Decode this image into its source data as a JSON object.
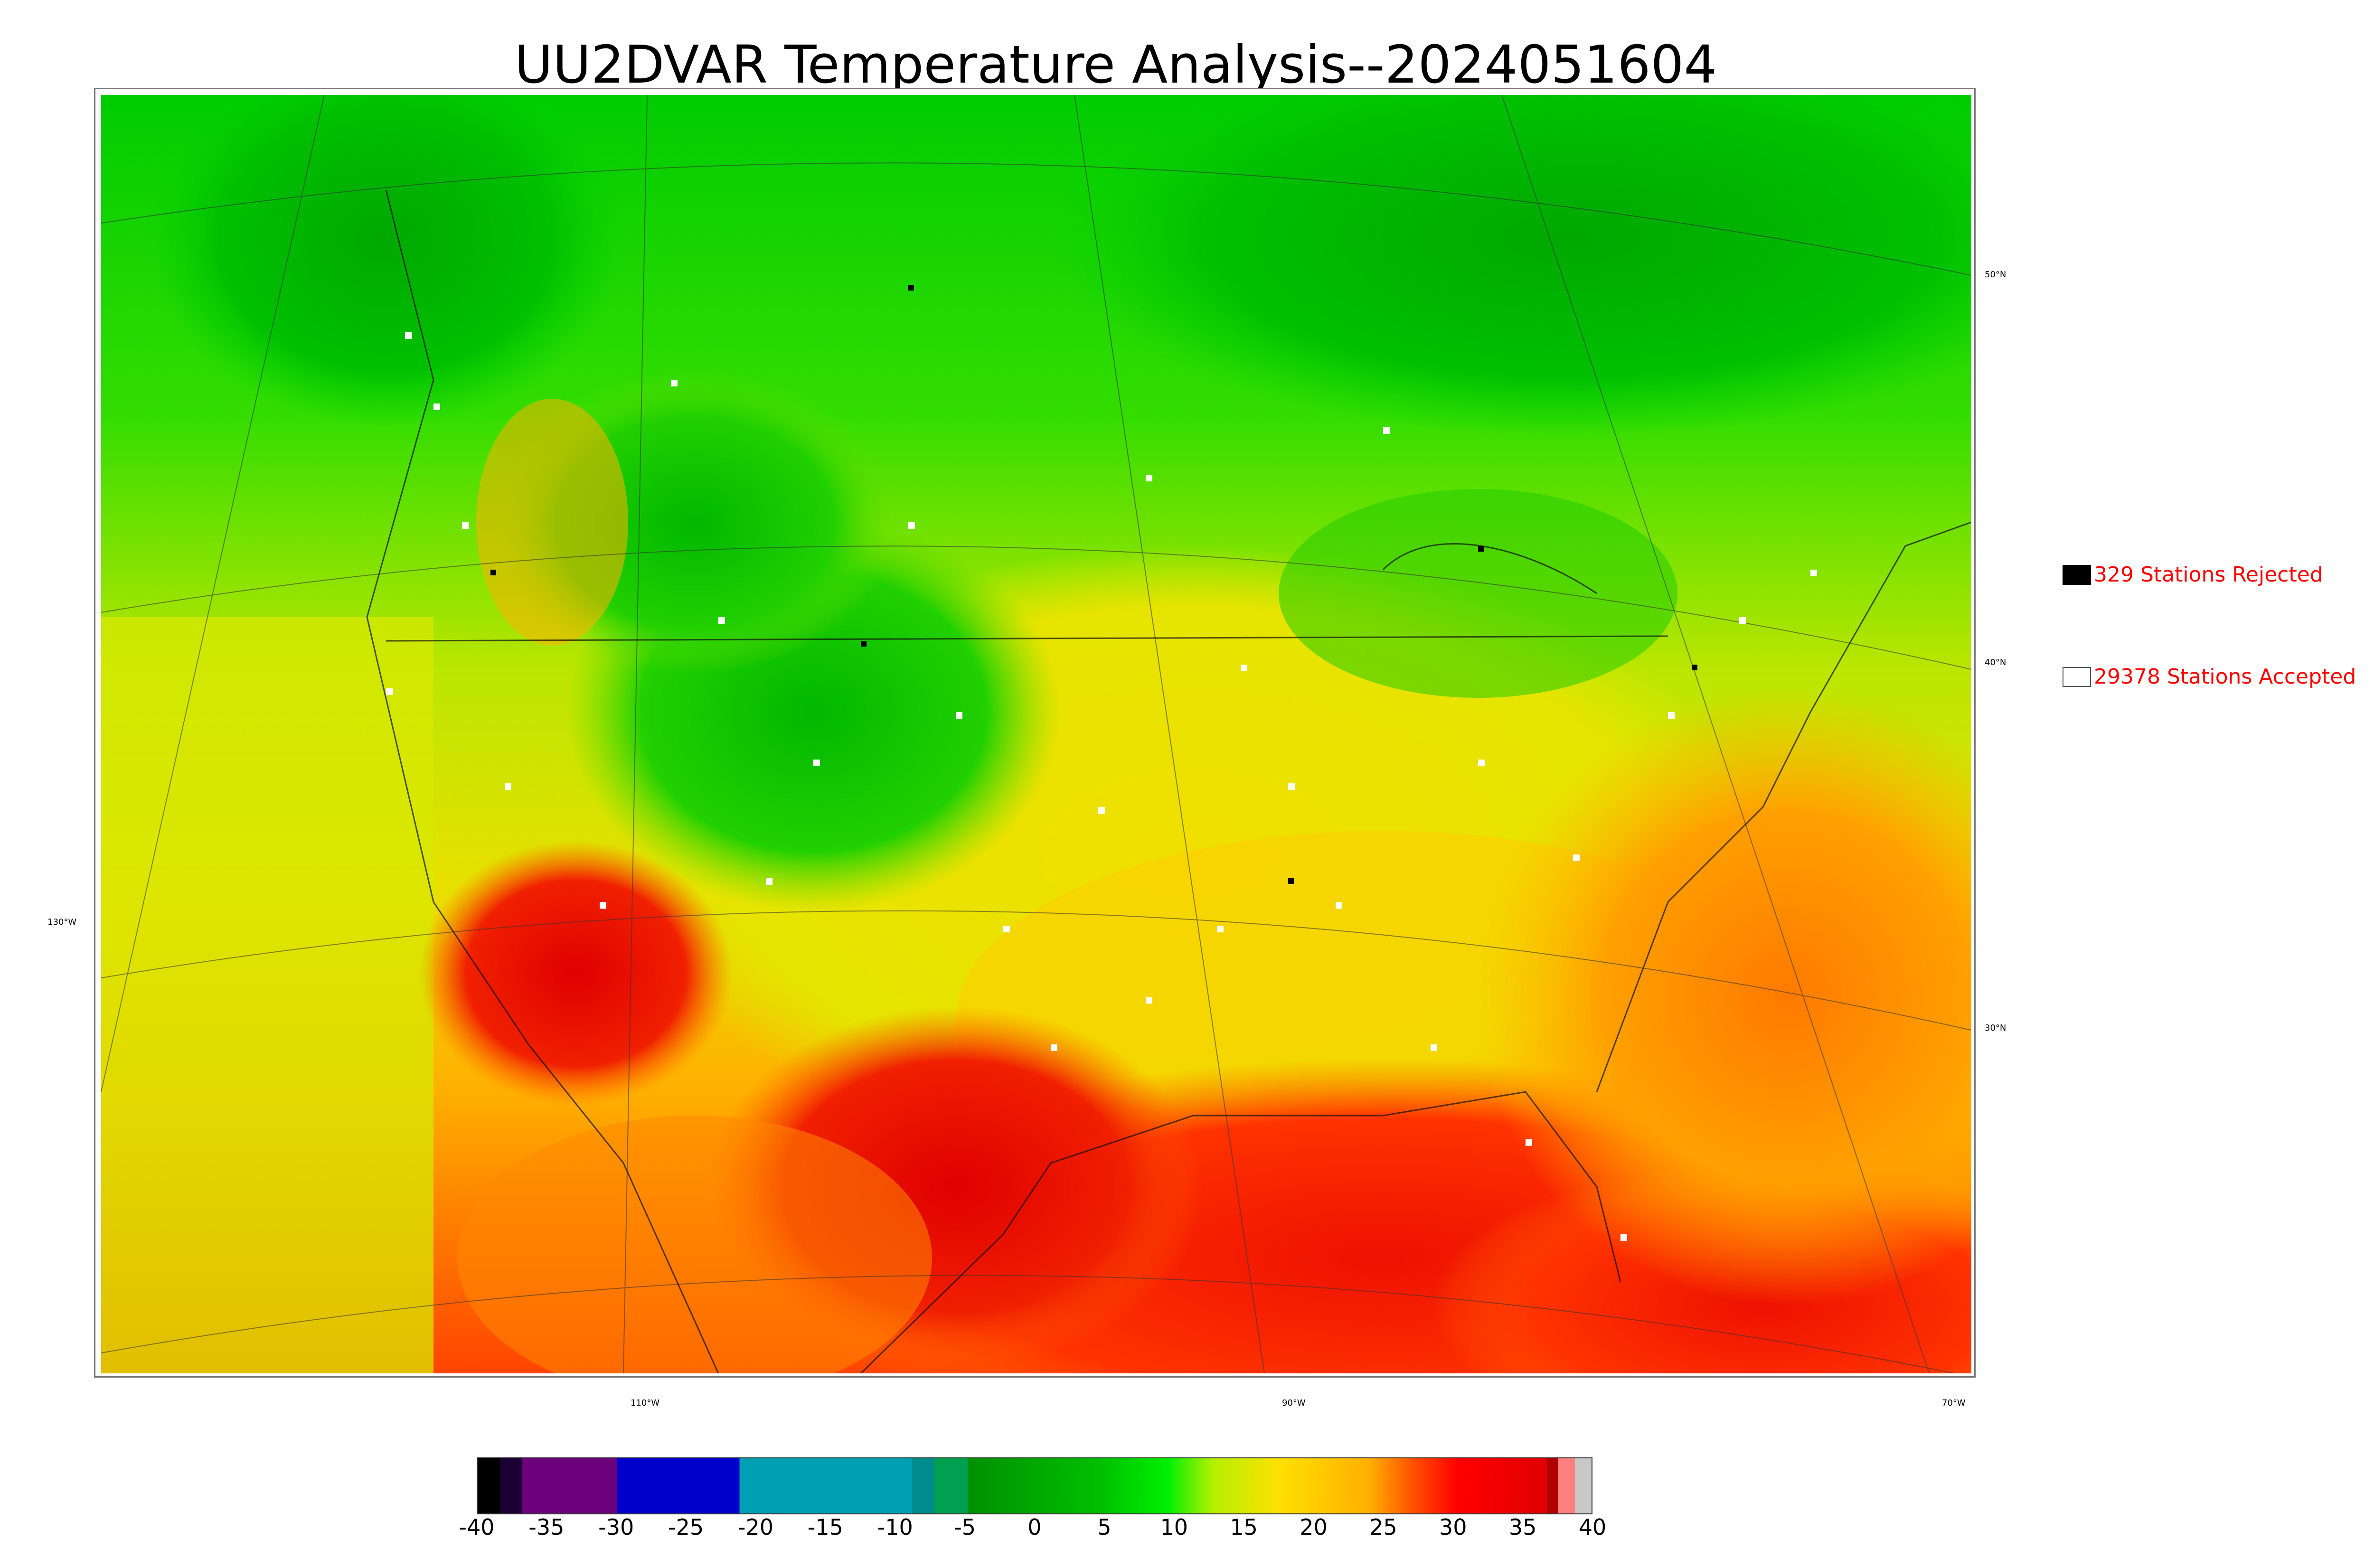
{
  "title": "UU2DVAR Temperature Analysis--2024051604",
  "grid_labels": {
    "lat_50": "50°N",
    "lat_40": "40°N",
    "lat_30": "30°N",
    "lon_130": "130°W",
    "lon_110": "110°W",
    "lon_90": "90°W",
    "lon_70": "70°W"
  },
  "legend": {
    "rejected": {
      "label": "329 Stations Rejected",
      "color": "#000000"
    },
    "accepted": {
      "label": "29378 Stations Accepted",
      "color": "#ffffff"
    }
  },
  "colorbar": {
    "ticks": [
      "-40",
      "-35",
      "-30",
      "-25",
      "-20",
      "-15",
      "-10",
      "-5",
      "0",
      "5",
      "10",
      "15",
      "20",
      "25",
      "30",
      "35",
      "40"
    ],
    "range": [
      -40,
      40
    ]
  },
  "colors": {
    "cold_green": "#00c000",
    "mild_yellow": "#dde800",
    "warm_orange": "#ffa500",
    "hot_red": "#ee1100",
    "ocean_west": "#d9ea00"
  }
}
